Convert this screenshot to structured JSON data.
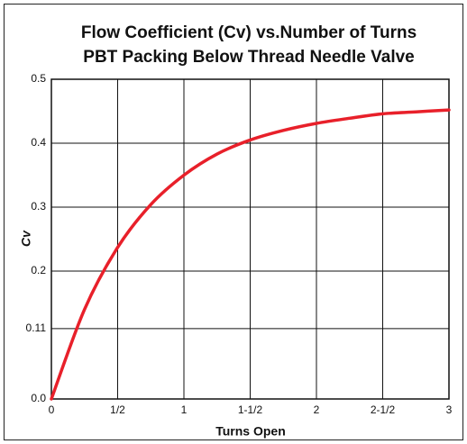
{
  "chart_data": {
    "type": "line",
    "title": "Flow Coefficient (Cv) vs.Number of Turns",
    "subtitle": "PBT Packing Below Thread Needle Valve",
    "xlabel": "Turns Open",
    "ylabel": "Cv",
    "x": [
      0,
      0.25,
      0.5,
      0.75,
      1,
      1.25,
      1.5,
      1.75,
      2,
      2.25,
      2.5,
      2.75,
      3
    ],
    "series": [
      {
        "name": "Cv",
        "color": "#e8202a",
        "values": [
          0,
          0.14,
          0.237,
          0.304,
          0.35,
          0.383,
          0.405,
          0.42,
          0.431,
          0.439,
          0.446,
          0.449,
          0.452
        ]
      }
    ],
    "xlim": [
      0,
      3
    ],
    "xticks": [
      0,
      {
        "value": 0.5,
        "label": "1/2"
      },
      1,
      {
        "value": 1.5,
        "label": "1-1/2"
      },
      2,
      {
        "value": 2.5,
        "label": "2-1/2"
      },
      3
    ],
    "ylim": [
      0,
      0.5
    ],
    "yticks": [
      {
        "value": 0,
        "label": "0.0"
      },
      0.11,
      0.2,
      0.3,
      0.4,
      0.5
    ],
    "grid": true
  }
}
